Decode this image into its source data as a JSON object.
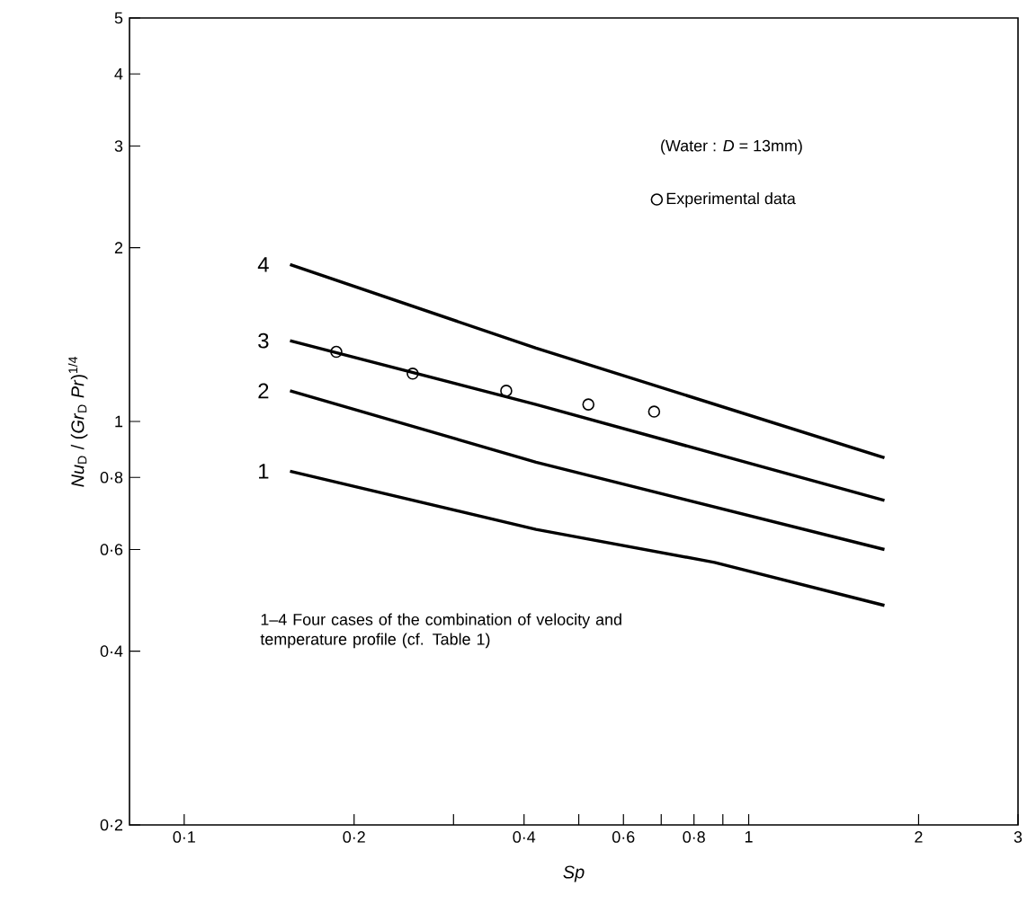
{
  "chart_data": {
    "type": "line",
    "log": "xy",
    "legend": "top right",
    "xlabel": "Sp",
    "ylabel": "*Nu*$_{D}$ / (*Gr*$_{D}$ *Pr*)$^{1/4}$",
    "xlim": [
      0.08,
      3
    ],
    "ylim": [
      0.2,
      5
    ],
    "xticks": [
      {
        "value": 0.1,
        "label": "0·1"
      },
      {
        "value": 0.2,
        "label": "0·2"
      },
      {
        "value": 0.3,
        "label": null
      },
      {
        "value": 0.4,
        "label": "0·4"
      },
      {
        "value": 0.5,
        "label": null
      },
      {
        "value": 0.6,
        "label": "0·6"
      },
      {
        "value": 0.7,
        "label": null
      },
      {
        "value": 0.8,
        "label": "0·8"
      },
      {
        "value": 0.9,
        "label": null
      },
      1,
      2,
      3
    ],
    "yticks": [
      {
        "value": 0.2,
        "label": "0·2"
      },
      {
        "value": 0.4,
        "label": "0·4"
      },
      {
        "value": 0.6,
        "label": "0·6"
      },
      {
        "value": 0.8,
        "label": "0·8"
      },
      1,
      2,
      3,
      4,
      5
    ],
    "annotations": [
      "(Water : *D* = 13mm)",
      "1–4   Four cases of the combination of velocity and temperature profile (cf. Table 1)"
    ],
    "series": [
      {
        "name": "4",
        "color": "#000000",
        "x": [
          0.154,
          0.42,
          1.74
        ],
        "values": [
          1.87,
          1.34,
          0.865
        ]
      },
      {
        "name": "3",
        "color": "#000000",
        "x": [
          0.154,
          0.42,
          1.74
        ],
        "values": [
          1.38,
          1.07,
          0.73
        ]
      },
      {
        "name": "2",
        "color": "#000000",
        "x": [
          0.154,
          0.42,
          1.74
        ],
        "values": [
          1.13,
          0.85,
          0.6
        ]
      },
      {
        "name": "1",
        "color": "#000000",
        "x": [
          0.154,
          0.42,
          0.87,
          1.74
        ],
        "values": [
          0.82,
          0.65,
          0.57,
          0.48
        ]
      },
      {
        "name": "Experimental data",
        "type": "scatter",
        "marker": "circle",
        "color": "#000000",
        "x": [
          0.186,
          0.254,
          0.372,
          0.52,
          0.68
        ],
        "values": [
          1.32,
          1.21,
          1.13,
          1.07,
          1.04
        ]
      }
    ]
  }
}
